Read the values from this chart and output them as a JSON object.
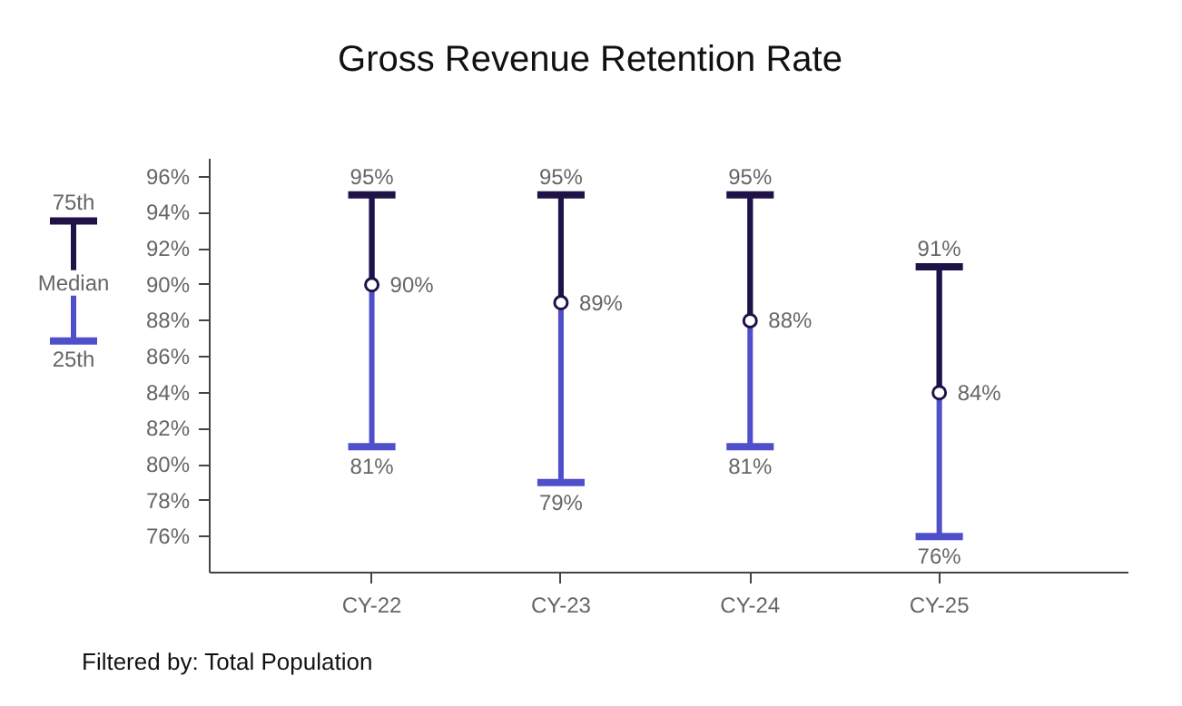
{
  "chart_data": {
    "type": "scatter",
    "title": "Gross Revenue Retention Rate",
    "categories": [
      "CY-22",
      "CY-23",
      "CY-24",
      "CY-25"
    ],
    "series": [
      {
        "name": "Median",
        "color": "#ffffff",
        "values": [
          90,
          89,
          88,
          84
        ],
        "errors": [
          [
            81,
            95
          ],
          [
            79,
            95
          ],
          [
            81,
            95
          ],
          [
            76,
            91
          ]
        ]
      }
    ],
    "colors": [
      "#1f1247",
      "#4f4fcc"
    ],
    "marker": "circle",
    "ylim": [
      74,
      97
    ],
    "yticks": [
      {
        "value": 76,
        "label": "76%"
      },
      {
        "value": 78,
        "label": "78%"
      },
      {
        "value": 80,
        "label": "80%"
      },
      {
        "value": 82,
        "label": "82%"
      },
      {
        "value": 84,
        "label": "84%"
      },
      {
        "value": 86,
        "label": "86%"
      },
      {
        "value": 88,
        "label": "88%"
      },
      {
        "value": 90,
        "label": "90%"
      },
      {
        "value": 92,
        "label": "92%"
      },
      {
        "value": 94,
        "label": "94%"
      },
      {
        "value": 96,
        "label": "96%"
      }
    ],
    "legend": "left",
    "grid": false,
    "annotations": [
      "75th",
      "25th",
      {
        "text": "95%",
        "x": "CY-22",
        "y": 95
      },
      {
        "text": "90%",
        "x": "CY-22",
        "y": 90
      },
      {
        "text": "81%",
        "x": "CY-22",
        "y": 81
      },
      {
        "text": "95%",
        "x": "CY-23",
        "y": 95
      },
      {
        "text": "89%",
        "x": "CY-23",
        "y": 89
      },
      {
        "text": "79%",
        "x": "CY-23",
        "y": 79
      },
      {
        "text": "95%",
        "x": "CY-24",
        "y": 95
      },
      {
        "text": "88%",
        "x": "CY-24",
        "y": 88
      },
      {
        "text": "81%",
        "x": "CY-24",
        "y": 81
      },
      {
        "text": "91%",
        "x": "CY-25",
        "y": 91
      },
      {
        "text": "84%",
        "x": "CY-25",
        "y": 84
      },
      {
        "text": "76%",
        "x": "CY-25",
        "y": 76
      },
      "Filtered by: Total Population"
    ]
  }
}
